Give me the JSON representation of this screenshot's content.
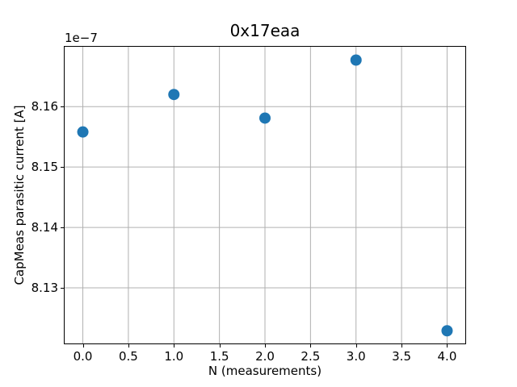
{
  "chart_data": {
    "type": "scatter",
    "title": "0x17eaa",
    "xlabel": "N (measurements)",
    "ylabel": "CapMeas parasitic current [A]",
    "y_offset_text": "1e−7",
    "unit_scale": "1e-7",
    "x": [
      0,
      1,
      2,
      3,
      4
    ],
    "y": [
      8.1558e-07,
      8.162e-07,
      8.1581e-07,
      8.1677e-07,
      8.1229e-07
    ],
    "y_scaled": [
      8.1558,
      8.162,
      8.1581,
      8.1677,
      8.1229
    ],
    "xlim": [
      -0.2,
      4.2
    ],
    "ylim_scaled": [
      8.1208,
      8.1699
    ],
    "xticks": [
      0,
      0.5,
      1,
      1.5,
      2,
      2.5,
      3,
      3.5,
      4
    ],
    "xtick_labels": [
      "0.0",
      "0.5",
      "1.0",
      "1.5",
      "2.0",
      "2.5",
      "3.0",
      "3.5",
      "4.0"
    ],
    "yticks_scaled": [
      8.13,
      8.14,
      8.15,
      8.16
    ],
    "ytick_labels": [
      "8.13",
      "8.14",
      "8.15",
      "8.16"
    ],
    "grid": true,
    "legend": "none",
    "marker": {
      "shape": "circle",
      "color": "#1f77b4",
      "radius_px": 7
    },
    "colors": {
      "grid": "#b0b0b0",
      "spine": "#000000",
      "text": "#000000",
      "background": "#ffffff"
    }
  }
}
